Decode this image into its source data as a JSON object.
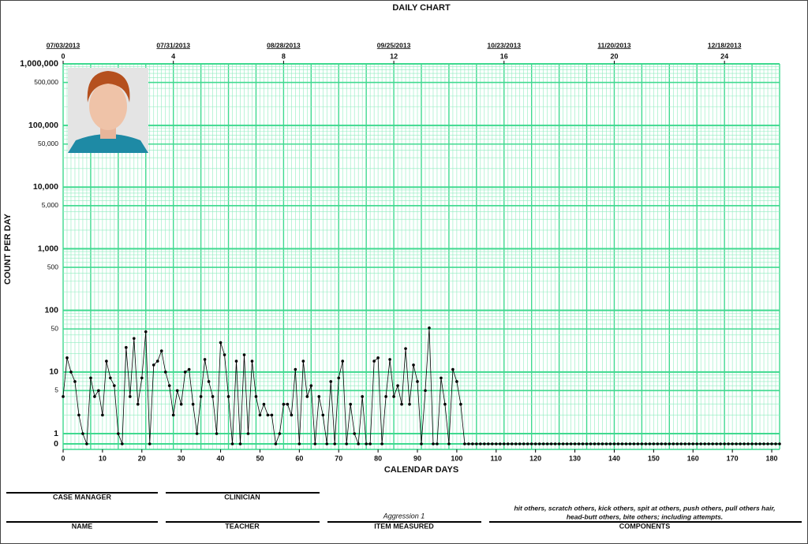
{
  "chart_data": {
    "type": "line",
    "title": "DAILY CHART",
    "x_label": "CALENDAR DAYS",
    "y_label": "COUNT PER DAY",
    "log_scale": true,
    "grid": true,
    "color": "#000000",
    "xlim": [
      0,
      182
    ],
    "xticks": [
      0,
      10,
      20,
      30,
      40,
      50,
      60,
      70,
      80,
      90,
      100,
      110,
      120,
      130,
      140,
      150,
      160,
      170,
      180
    ],
    "ylim": [
      0,
      1000000
    ],
    "yticks": [
      {
        "value": 1000000,
        "label": "1,000,000"
      },
      {
        "value": 500000,
        "label": "500,000"
      },
      {
        "value": 100000,
        "label": "100,000"
      },
      {
        "value": 50000,
        "label": "50,000"
      },
      {
        "value": 10000,
        "label": "10,000"
      },
      {
        "value": 5000,
        "label": "5,000"
      },
      {
        "value": 1000,
        "label": "1,000"
      },
      500,
      100,
      50,
      10,
      5,
      1,
      0
    ],
    "week_ticks": [
      0,
      4,
      8,
      12,
      16,
      20,
      24
    ],
    "week_dates": [
      "07/03/2013",
      "07/31/2013",
      "08/28/2013",
      "09/25/2013",
      "10/23/2013",
      "11/20/2013",
      "12/18/2013"
    ],
    "x": [
      0,
      1,
      2,
      3,
      4,
      5,
      6,
      7,
      8,
      9,
      10,
      11,
      12,
      13,
      14,
      15,
      16,
      17,
      18,
      19,
      20,
      21,
      22,
      23,
      24,
      25,
      26,
      27,
      28,
      29,
      30,
      31,
      32,
      33,
      34,
      35,
      36,
      37,
      38,
      39,
      40,
      41,
      42,
      43,
      44,
      45,
      46,
      47,
      48,
      49,
      50,
      51,
      52,
      53,
      54,
      55,
      56,
      57,
      58,
      59,
      60,
      61,
      62,
      63,
      64,
      65,
      66,
      67,
      68,
      69,
      70,
      71,
      72,
      73,
      74,
      75,
      76,
      77,
      78,
      79,
      80,
      81,
      82,
      83,
      84,
      85,
      86,
      87,
      88,
      89,
      90,
      91,
      92,
      93,
      94,
      95,
      96,
      97,
      98,
      99,
      100,
      101,
      102,
      103,
      104,
      105,
      106,
      107,
      108,
      109,
      110,
      111,
      112,
      113,
      114,
      115,
      116,
      117,
      118,
      119,
      120,
      121,
      122,
      123,
      124,
      125,
      126,
      127,
      128,
      129,
      130,
      131,
      132,
      133,
      134,
      135,
      136,
      137,
      138,
      139,
      140,
      141,
      142,
      143,
      144,
      145,
      146,
      147,
      148,
      149,
      150,
      151,
      152,
      153,
      154,
      155,
      156,
      157,
      158,
      159,
      160,
      161,
      162,
      163,
      164,
      165,
      166,
      167,
      168,
      169,
      170,
      171,
      172,
      173,
      174,
      175,
      176,
      177,
      178,
      179,
      180,
      181,
      182
    ],
    "values": [
      4,
      17,
      10,
      7,
      2,
      1,
      0,
      8,
      4,
      5,
      2,
      15,
      8,
      6,
      1,
      0,
      25,
      4,
      35,
      3,
      8,
      45,
      0,
      13,
      15,
      22,
      10,
      6,
      2,
      5,
      3,
      10,
      11,
      3,
      1,
      4,
      16,
      7,
      4,
      1,
      30,
      19,
      4,
      0,
      15,
      0,
      19,
      1,
      15,
      4,
      2,
      3,
      2,
      2,
      0,
      1,
      3,
      3,
      2,
      11,
      0,
      15,
      4,
      6,
      0,
      4,
      2,
      0,
      7,
      0,
      8,
      15,
      0,
      3,
      1,
      0,
      4,
      0,
      0,
      15,
      17,
      0,
      4,
      16,
      4,
      6,
      3,
      24,
      3,
      13,
      7,
      0,
      5,
      52,
      0,
      0,
      8,
      3,
      0,
      11,
      7,
      3,
      0,
      0,
      0,
      0,
      0,
      0,
      0,
      0,
      0,
      0,
      0,
      0,
      0,
      0,
      0,
      0,
      0,
      0,
      0,
      0,
      0,
      0,
      0,
      0,
      0,
      0,
      0,
      0,
      0,
      0,
      0,
      0,
      0,
      0,
      0,
      0,
      0,
      0,
      0,
      0,
      0,
      0,
      0,
      0,
      0,
      0,
      0,
      0,
      0,
      0,
      0,
      0,
      0,
      0,
      0,
      0,
      0,
      0,
      0,
      0,
      0,
      0,
      0,
      0,
      0,
      0,
      0,
      0,
      0,
      0,
      0,
      0,
      0,
      0,
      0,
      0,
      0,
      0,
      0,
      0,
      0
    ]
  },
  "form": {
    "case_manager": "CASE MANAGER",
    "clinician": "CLINICIAN",
    "name": "NAME",
    "teacher": "TEACHER",
    "item_measured_label": "ITEM MEASURED",
    "item_measured": "Aggression 1",
    "components_label": "COMPONENTS",
    "components": [
      "hit others, scratch others, kick others, spit at others, push others, pull others hair,",
      "head-butt others, bite others; including attempts."
    ]
  }
}
